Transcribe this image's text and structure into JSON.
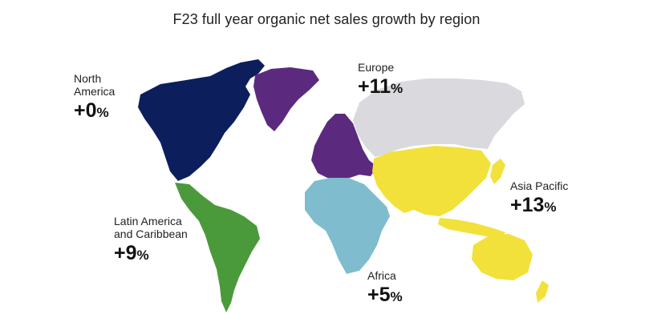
{
  "title": "F23 full year organic net sales growth by region",
  "regions": {
    "north_america": {
      "name_line1": "North",
      "name_line2": "America",
      "value": "+0",
      "unit": "%",
      "color": "#0c1f5c"
    },
    "europe": {
      "name": "Europe",
      "value": "+11",
      "unit": "%",
      "color": "#5b2a7e"
    },
    "asia_pacific": {
      "name": "Asia Pacific",
      "value": "+13",
      "unit": "%",
      "color": "#f2e13a"
    },
    "latin_america": {
      "name_line1": "Latin America",
      "name_line2": "and Caribbean",
      "value": "+9",
      "unit": "%",
      "color": "#4a9a3b"
    },
    "africa": {
      "name": "Africa",
      "value": "+5",
      "unit": "%",
      "color": "#7fbccd"
    }
  },
  "colors": {
    "russia_other": "#d9d9de"
  }
}
